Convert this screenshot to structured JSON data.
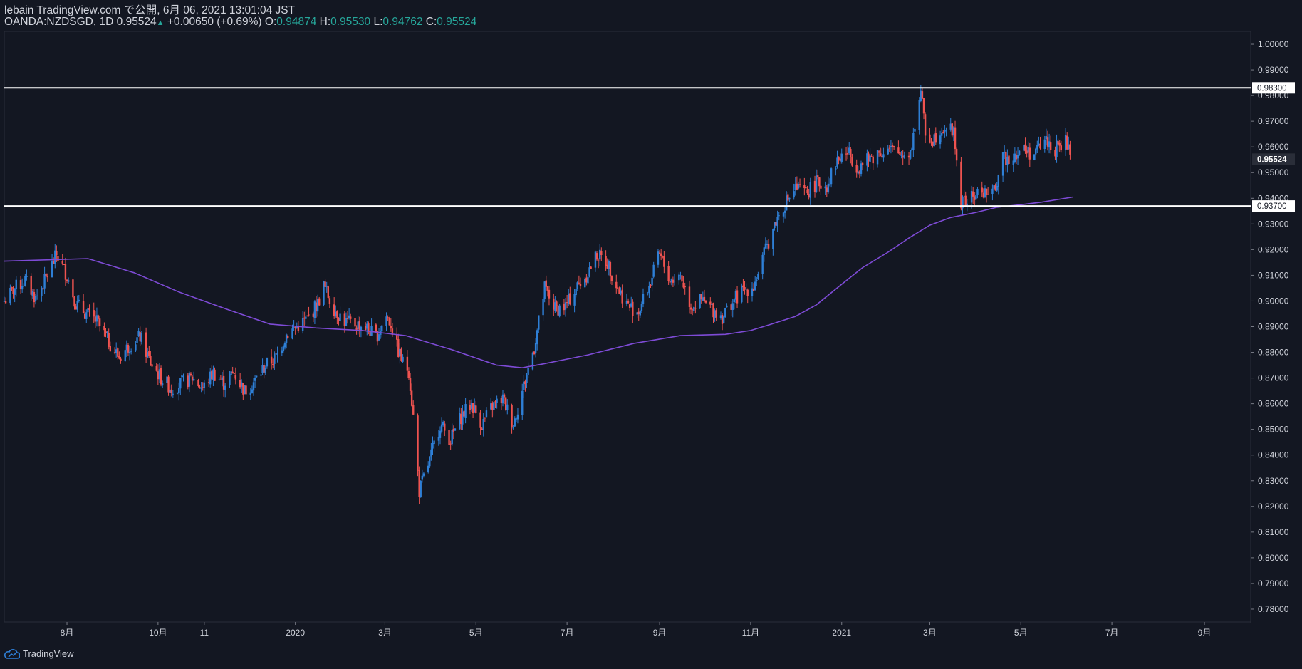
{
  "header": {
    "publish_line": "lebain TradingView.com で公開, 6月 06, 2021 13:01:04 JST",
    "symbol": "OANDA:NZDSGD",
    "interval": "1D",
    "last": "0.95524",
    "change": "+0.00650 (+0.69%)",
    "o_label": "O:",
    "o_value": "0.94874",
    "h_label": "H:",
    "h_value": "0.95530",
    "l_label": "L:",
    "l_value": "0.94762",
    "c_label": "C:",
    "c_value": "0.95524"
  },
  "footer": {
    "brand": "TradingView"
  },
  "colors": {
    "background": "#131722",
    "up": "#2e7fd6",
    "down": "#ef5350",
    "ma": "#7e4bd6",
    "level": "#ffffff",
    "text": "#d1d4dc",
    "ohlc_value": "#26a69a"
  },
  "chart_data": {
    "type": "candlestick",
    "ylim": [
      0.775,
      1.005
    ],
    "y_ticks": [
      "1.00000",
      "0.99000",
      "0.98000",
      "0.97000",
      "0.96000",
      "0.95000",
      "0.94000",
      "0.93000",
      "0.92000",
      "0.91000",
      "0.90000",
      "0.89000",
      "0.88000",
      "0.87000",
      "0.86000",
      "0.85000",
      "0.84000",
      "0.83000",
      "0.82000",
      "0.81000",
      "0.80000",
      "0.79000",
      "0.78000"
    ],
    "x_ticks": [
      {
        "label": "8月",
        "date": "2019-08-01"
      },
      {
        "label": "10月",
        "date": "2019-10-01"
      },
      {
        "label": "11",
        "date": "2019-11-01"
      },
      {
        "label": "2020",
        "date": "2020-01-01"
      },
      {
        "label": "3月",
        "date": "2020-03-01"
      },
      {
        "label": "5月",
        "date": "2020-05-01"
      },
      {
        "label": "7月",
        "date": "2020-07-01"
      },
      {
        "label": "9月",
        "date": "2020-09-01"
      },
      {
        "label": "11月",
        "date": "2020-11-01"
      },
      {
        "label": "2021",
        "date": "2021-01-01"
      },
      {
        "label": "3月",
        "date": "2021-03-01"
      },
      {
        "label": "5月",
        "date": "2021-05-01"
      },
      {
        "label": "7月",
        "date": "2021-07-01"
      },
      {
        "label": "9月",
        "date": "2021-09-01"
      }
    ],
    "x_range": [
      "2019-06-20",
      "2021-10-02"
    ],
    "close_path": [
      [
        "2019-06-20",
        0.9
      ],
      [
        "2019-06-27",
        0.905
      ],
      [
        "2019-07-04",
        0.908
      ],
      [
        "2019-07-11",
        0.901
      ],
      [
        "2019-07-18",
        0.909
      ],
      [
        "2019-07-25",
        0.918
      ],
      [
        "2019-08-01",
        0.91
      ],
      [
        "2019-08-07",
        0.899
      ],
      [
        "2019-08-14",
        0.895
      ],
      [
        "2019-08-21",
        0.892
      ],
      [
        "2019-08-28",
        0.885
      ],
      [
        "2019-09-05",
        0.878
      ],
      [
        "2019-09-12",
        0.883
      ],
      [
        "2019-09-19",
        0.886
      ],
      [
        "2019-09-26",
        0.876
      ],
      [
        "2019-10-03",
        0.87
      ],
      [
        "2019-10-10",
        0.866
      ],
      [
        "2019-10-17",
        0.868
      ],
      [
        "2019-10-24",
        0.87
      ],
      [
        "2019-10-31",
        0.866
      ],
      [
        "2019-11-07",
        0.872
      ],
      [
        "2019-11-14",
        0.868
      ],
      [
        "2019-11-21",
        0.872
      ],
      [
        "2019-11-28",
        0.865
      ],
      [
        "2019-12-05",
        0.869
      ],
      [
        "2019-12-12",
        0.875
      ],
      [
        "2019-12-19",
        0.878
      ],
      [
        "2019-12-26",
        0.887
      ],
      [
        "2020-01-02",
        0.89
      ],
      [
        "2020-01-09",
        0.893
      ],
      [
        "2020-01-16",
        0.899
      ],
      [
        "2020-01-20",
        0.906
      ],
      [
        "2020-01-27",
        0.897
      ],
      [
        "2020-02-03",
        0.892
      ],
      [
        "2020-02-10",
        0.891
      ],
      [
        "2020-02-17",
        0.89
      ],
      [
        "2020-02-24",
        0.886
      ],
      [
        "2020-03-02",
        0.894
      ],
      [
        "2020-03-05",
        0.891
      ],
      [
        "2020-03-09",
        0.882
      ],
      [
        "2020-03-13",
        0.876
      ],
      [
        "2020-03-17",
        0.873
      ],
      [
        "2020-03-20",
        0.855
      ],
      [
        "2020-03-24",
        0.826
      ],
      [
        "2020-03-31",
        0.838
      ],
      [
        "2020-04-07",
        0.852
      ],
      [
        "2020-04-14",
        0.846
      ],
      [
        "2020-04-21",
        0.855
      ],
      [
        "2020-04-28",
        0.86
      ],
      [
        "2020-05-05",
        0.852
      ],
      [
        "2020-05-12",
        0.859
      ],
      [
        "2020-05-19",
        0.862
      ],
      [
        "2020-05-26",
        0.852
      ],
      [
        "2020-06-02",
        0.867
      ],
      [
        "2020-06-09",
        0.882
      ],
      [
        "2020-06-16",
        0.905
      ],
      [
        "2020-06-23",
        0.897
      ],
      [
        "2020-06-30",
        0.898
      ],
      [
        "2020-07-07",
        0.905
      ],
      [
        "2020-07-14",
        0.91
      ],
      [
        "2020-07-21",
        0.918
      ],
      [
        "2020-07-28",
        0.915
      ],
      [
        "2020-08-04",
        0.905
      ],
      [
        "2020-08-11",
        0.898
      ],
      [
        "2020-08-18",
        0.896
      ],
      [
        "2020-08-25",
        0.906
      ],
      [
        "2020-09-01",
        0.918
      ],
      [
        "2020-09-08",
        0.908
      ],
      [
        "2020-09-15",
        0.91
      ],
      [
        "2020-09-22",
        0.898
      ],
      [
        "2020-09-29",
        0.9
      ],
      [
        "2020-10-06",
        0.897
      ],
      [
        "2020-10-13",
        0.894
      ],
      [
        "2020-10-20",
        0.9
      ],
      [
        "2020-10-27",
        0.904
      ],
      [
        "2020-11-03",
        0.906
      ],
      [
        "2020-11-10",
        0.918
      ],
      [
        "2020-11-17",
        0.93
      ],
      [
        "2020-11-24",
        0.938
      ],
      [
        "2020-12-01",
        0.944
      ],
      [
        "2020-12-08",
        0.942
      ],
      [
        "2020-12-15",
        0.946
      ],
      [
        "2020-12-22",
        0.945
      ],
      [
        "2020-12-29",
        0.955
      ],
      [
        "2021-01-05",
        0.958
      ],
      [
        "2021-01-12",
        0.952
      ],
      [
        "2021-01-19",
        0.955
      ],
      [
        "2021-01-26",
        0.958
      ],
      [
        "2021-02-02",
        0.959
      ],
      [
        "2021-02-09",
        0.957
      ],
      [
        "2021-02-16",
        0.958
      ],
      [
        "2021-02-23",
        0.982
      ],
      [
        "2021-02-26",
        0.965
      ],
      [
        "2021-03-03",
        0.963
      ],
      [
        "2021-03-10",
        0.968
      ],
      [
        "2021-03-17",
        0.966
      ],
      [
        "2021-03-22",
        0.938
      ],
      [
        "2021-03-29",
        0.94
      ],
      [
        "2021-04-05",
        0.943
      ],
      [
        "2021-04-12",
        0.941
      ],
      [
        "2021-04-19",
        0.955
      ],
      [
        "2021-04-26",
        0.957
      ],
      [
        "2021-05-03",
        0.959
      ],
      [
        "2021-05-10",
        0.957
      ],
      [
        "2021-05-17",
        0.963
      ],
      [
        "2021-05-24",
        0.959
      ],
      [
        "2021-05-31",
        0.962
      ],
      [
        "2021-06-04",
        0.955
      ]
    ],
    "moving_average": [
      [
        "2019-06-20",
        0.9155
      ],
      [
        "2019-08-15",
        0.9165
      ],
      [
        "2019-09-15",
        0.911
      ],
      [
        "2019-10-15",
        0.9035
      ],
      [
        "2019-11-15",
        0.897
      ],
      [
        "2019-12-15",
        0.891
      ],
      [
        "2020-01-15",
        0.8895
      ],
      [
        "2020-02-15",
        0.8885
      ],
      [
        "2020-03-15",
        0.8865
      ],
      [
        "2020-04-15",
        0.881
      ],
      [
        "2020-05-15",
        0.875
      ],
      [
        "2020-06-01",
        0.874
      ],
      [
        "2020-06-15",
        0.8755
      ],
      [
        "2020-07-15",
        0.879
      ],
      [
        "2020-08-15",
        0.8835
      ],
      [
        "2020-09-15",
        0.8865
      ],
      [
        "2020-10-15",
        0.887
      ],
      [
        "2020-11-01",
        0.8885
      ],
      [
        "2020-11-15",
        0.891
      ],
      [
        "2020-12-01",
        0.894
      ],
      [
        "2020-12-15",
        0.8985
      ],
      [
        "2021-01-01",
        0.9065
      ],
      [
        "2021-01-15",
        0.913
      ],
      [
        "2021-02-01",
        0.919
      ],
      [
        "2021-02-15",
        0.9245
      ],
      [
        "2021-03-01",
        0.9295
      ],
      [
        "2021-03-15",
        0.9325
      ],
      [
        "2021-04-01",
        0.9345
      ],
      [
        "2021-04-15",
        0.9365
      ],
      [
        "2021-05-01",
        0.9375
      ],
      [
        "2021-05-15",
        0.9385
      ],
      [
        "2021-06-05",
        0.9405
      ]
    ],
    "levels": [
      {
        "value": 0.983,
        "label": "0.98300"
      },
      {
        "value": 0.937,
        "label": "0.93700"
      }
    ],
    "last_price": {
      "value": 0.95524,
      "label": "0.95524"
    }
  }
}
